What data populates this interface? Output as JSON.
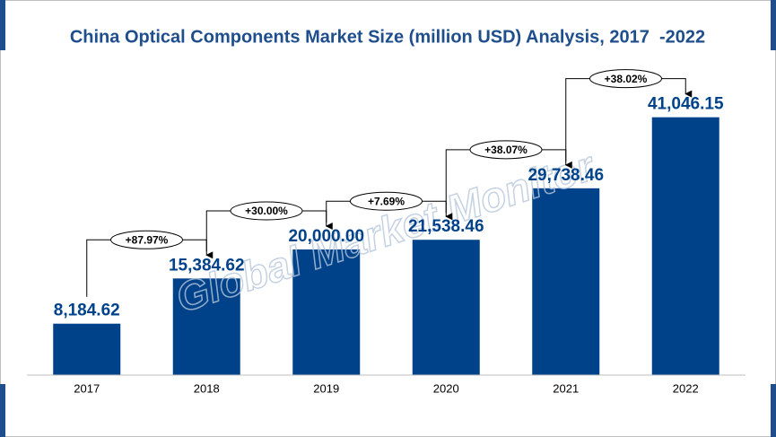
{
  "chart_data": {
    "type": "bar",
    "title": "China Optical Components Market Size (million USD) Analysis, 2017  -2022",
    "watermark": "Global Market Monitor",
    "categories": [
      "2017",
      "2018",
      "2019",
      "2020",
      "2021",
      "2022"
    ],
    "values": [
      8184.62,
      15384.62,
      20000.0,
      21538.46,
      29738.46,
      41046.15
    ],
    "value_labels": [
      "8,184.62",
      "15,384.62",
      "20,000.00",
      "21,538.46",
      "29,738.46",
      "41,046.15"
    ],
    "annotations": [
      "+87.97%",
      "+30.00%",
      "+7.69%",
      "+38.07%",
      "+38.02%"
    ],
    "color": "#00428a",
    "ylim": [
      0,
      45000
    ]
  }
}
